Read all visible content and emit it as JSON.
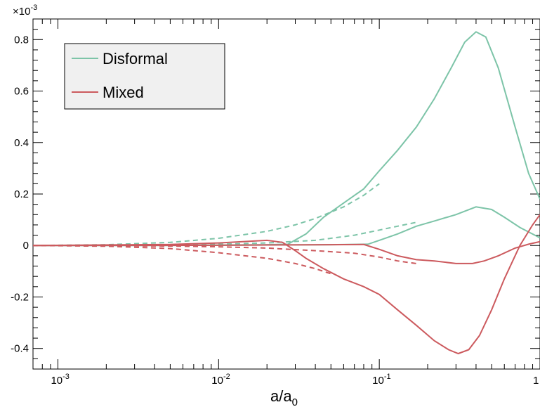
{
  "chart_data": {
    "type": "line",
    "title": "",
    "xlabel": "a/a",
    "xlabel_subscript": "0",
    "ylabel": "",
    "xscale": "log",
    "xlim": [
      0.0007,
      1.0
    ],
    "ylim": [
      -0.00048,
      0.00088
    ],
    "y_multiplier_label": "×10",
    "y_multiplier_exponent": "-3",
    "x_ticks": [
      {
        "value": 0.001,
        "base": "10",
        "exp": "-3"
      },
      {
        "value": 0.01,
        "base": "10",
        "exp": "-2"
      },
      {
        "value": 0.1,
        "base": "10",
        "exp": "-1"
      },
      {
        "value": 1.0,
        "base": "1",
        "exp": ""
      }
    ],
    "y_ticks": [
      {
        "value": -0.0004,
        "label": "-0.4"
      },
      {
        "value": -0.0002,
        "label": "-0.2"
      },
      {
        "value": 0.0,
        "label": "0"
      },
      {
        "value": 0.0002,
        "label": "0.2"
      },
      {
        "value": 0.0004,
        "label": "0.4"
      },
      {
        "value": 0.0006,
        "label": "0.6"
      },
      {
        "value": 0.0008,
        "label": "0.8"
      }
    ],
    "grid": false,
    "legend_position": "top-left",
    "series": [
      {
        "name": "Disformal",
        "color": "#7dc4a8",
        "style": "solid",
        "x": [
          0.0007,
          0.005,
          0.02,
          0.027,
          0.035,
          0.045,
          0.06,
          0.08,
          0.1,
          0.13,
          0.17,
          0.22,
          0.28,
          0.34,
          0.4,
          0.46,
          0.55,
          0.7,
          0.85,
          1.0
        ],
        "y": [
          0.0,
          0.0,
          3e-06,
          5e-06,
          4.5e-05,
          0.00011,
          0.000165,
          0.00022,
          0.00029,
          0.00037,
          0.00046,
          0.00057,
          0.00069,
          0.00079,
          0.00083,
          0.00081,
          0.00069,
          0.00046,
          0.00028,
          0.00018
        ]
      },
      {
        "name": "",
        "color": "#7dc4a8",
        "style": "dashed",
        "x": [
          0.0007,
          0.002,
          0.005,
          0.01,
          0.02,
          0.03,
          0.04,
          0.06,
          0.08,
          0.1
        ],
        "y": [
          0.0,
          3e-06,
          1.2e-05,
          2.8e-05,
          5.5e-05,
          8e-05,
          0.000105,
          0.00015,
          0.000195,
          0.00024
        ]
      },
      {
        "name": "",
        "color": "#7dc4a8",
        "style": "solid",
        "x": [
          0.0007,
          0.01,
          0.05,
          0.085,
          0.1,
          0.13,
          0.17,
          0.22,
          0.3,
          0.4,
          0.5,
          0.6,
          0.75,
          1.0
        ],
        "y": [
          0.0,
          1e-06,
          3e-06,
          5e-06,
          2e-05,
          4.5e-05,
          7.5e-05,
          9.5e-05,
          0.00012,
          0.00015,
          0.00014,
          0.00011,
          7e-05,
          3e-05
        ]
      },
      {
        "name": "",
        "color": "#7dc4a8",
        "style": "dashed",
        "x": [
          0.0007,
          0.005,
          0.01,
          0.02,
          0.04,
          0.07,
          0.1,
          0.13,
          0.17
        ],
        "y": [
          0.0,
          2e-06,
          5e-06,
          1e-05,
          2e-05,
          4e-05,
          6e-05,
          7.5e-05,
          9e-05
        ]
      },
      {
        "name": "Mixed",
        "color": "#cc5a5e",
        "style": "solid",
        "x": [
          0.0007,
          0.005,
          0.01,
          0.02,
          0.025,
          0.03,
          0.035,
          0.045,
          0.06,
          0.08,
          0.1,
          0.13,
          0.17,
          0.22,
          0.27,
          0.31,
          0.36,
          0.42,
          0.5,
          0.6,
          0.75,
          0.9,
          1.0
        ],
        "y": [
          0.0,
          4e-06,
          1e-05,
          2e-05,
          1.2e-05,
          -2e-05,
          -5e-05,
          -9e-05,
          -0.00013,
          -0.00016,
          -0.00019,
          -0.00025,
          -0.00031,
          -0.00037,
          -0.000405,
          -0.00042,
          -0.000405,
          -0.00035,
          -0.00025,
          -0.00013,
          0.0,
          8e-05,
          0.00012
        ]
      },
      {
        "name": "",
        "color": "#cc5a5e",
        "style": "dashed",
        "x": [
          0.0007,
          0.002,
          0.005,
          0.01,
          0.02,
          0.03,
          0.04,
          0.05
        ],
        "y": [
          0.0,
          -3e-06,
          -1.2e-05,
          -2.8e-05,
          -5e-05,
          -7e-05,
          -9e-05,
          -0.00011
        ]
      },
      {
        "name": "",
        "color": "#cc5a5e",
        "style": "solid",
        "x": [
          0.0007,
          0.01,
          0.05,
          0.08,
          0.1,
          0.13,
          0.17,
          0.22,
          0.3,
          0.38,
          0.45,
          0.55,
          0.7,
          0.85,
          1.0
        ],
        "y": [
          0.0,
          1e-06,
          3e-06,
          4e-06,
          -1.5e-05,
          -4e-05,
          -5.5e-05,
          -6e-05,
          -7e-05,
          -7e-05,
          -6e-05,
          -4e-05,
          -1e-05,
          5e-06,
          1.5e-05
        ]
      },
      {
        "name": "",
        "color": "#cc5a5e",
        "style": "dashed",
        "x": [
          0.0007,
          0.005,
          0.01,
          0.02,
          0.04,
          0.07,
          0.1,
          0.13,
          0.17
        ],
        "y": [
          0.0,
          -2e-06,
          -5e-06,
          -1e-05,
          -2e-05,
          -3e-05,
          -4.5e-05,
          -6e-05,
          -7e-05
        ]
      }
    ]
  }
}
